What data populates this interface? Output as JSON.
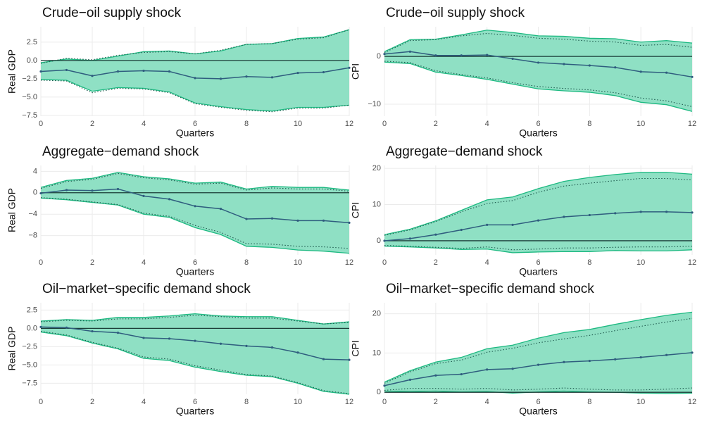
{
  "chart_data": [
    {
      "type": "band-line",
      "title": "Crude−oil supply shock",
      "xlabel": "Quarters",
      "ylabel": "Real GDP",
      "x": [
        0,
        1,
        2,
        3,
        4,
        5,
        6,
        7,
        8,
        9,
        10,
        11,
        12
      ],
      "xlim": [
        0,
        12
      ],
      "xticks": [
        0,
        2,
        4,
        6,
        8,
        10,
        12
      ],
      "ylim": [
        -7.6,
        4.6
      ],
      "yticks": [
        {
          "value": -7.5,
          "label": "−7.5"
        },
        {
          "value": -5,
          "label": "−5.0"
        },
        {
          "value": -2.5,
          "label": "−2.5"
        },
        {
          "value": 0,
          "label": "0.0"
        },
        {
          "value": 2.5,
          "label": "2.5"
        }
      ],
      "grid": true,
      "hline": 0,
      "band": {
        "color": "#8fe0c4",
        "edge_color": "#1db981",
        "upper": [
          -0.3,
          0.2,
          0.0,
          0.6,
          1.2,
          1.3,
          0.9,
          1.3,
          2.2,
          2.3,
          3.0,
          3.2,
          4.2
        ],
        "lower": [
          -2.6,
          -2.7,
          -4.2,
          -3.7,
          -3.8,
          -4.3,
          -5.8,
          -6.3,
          -6.7,
          -6.9,
          -6.4,
          -6.4,
          -6.1
        ]
      },
      "interval": {
        "color": "#1e5a4e",
        "upper": [
          -0.4,
          0.3,
          0.1,
          0.7,
          1.1,
          1.2,
          0.9,
          1.4,
          2.2,
          2.3,
          2.9,
          3.1,
          4.2
        ],
        "lower": [
          -2.7,
          -2.8,
          -4.4,
          -3.8,
          -3.9,
          -4.4,
          -5.9,
          -6.4,
          -6.8,
          -7.0,
          -6.5,
          -6.5,
          -6.1
        ]
      },
      "series": [
        {
          "color": "#2f5d7e",
          "values": [
            -1.5,
            -1.3,
            -2.1,
            -1.5,
            -1.4,
            -1.5,
            -2.4,
            -2.5,
            -2.2,
            -2.3,
            -1.7,
            -1.6,
            -1.0
          ]
        }
      ]
    },
    {
      "type": "band-line",
      "title": "Crude−oil supply shock",
      "xlabel": "Quarters",
      "ylabel": "CPI",
      "x": [
        0,
        1,
        2,
        3,
        4,
        5,
        6,
        7,
        8,
        9,
        10,
        11,
        12
      ],
      "xlim": [
        0,
        12
      ],
      "xticks": [
        0,
        2,
        4,
        6,
        8,
        10,
        12
      ],
      "ylim": [
        -12.5,
        6.2
      ],
      "yticks": [
        {
          "value": -10,
          "label": "−10"
        },
        0
      ],
      "grid": true,
      "hline": 0,
      "band": {
        "color": "#8fe0c4",
        "edge_color": "#1db981",
        "upper": [
          1.0,
          3.5,
          3.6,
          4.5,
          5.5,
          5.0,
          4.3,
          4.2,
          3.8,
          3.7,
          3.0,
          3.3,
          2.8
        ],
        "lower": [
          -1.2,
          -1.5,
          -3.3,
          -4.0,
          -4.8,
          -5.8,
          -6.8,
          -7.2,
          -7.5,
          -8.2,
          -9.6,
          -10.1,
          -11.5
        ]
      },
      "interval": {
        "color": "#1e5a4e",
        "upper": [
          0.8,
          3.3,
          3.5,
          4.3,
          4.8,
          4.4,
          3.8,
          3.6,
          3.2,
          3.0,
          2.3,
          2.5,
          1.9
        ],
        "lower": [
          -1.0,
          -1.3,
          -3.0,
          -3.8,
          -4.5,
          -5.5,
          -6.3,
          -6.7,
          -7.0,
          -7.6,
          -8.7,
          -9.3,
          -10.5
        ]
      },
      "series": [
        {
          "color": "#2f5d7e",
          "values": [
            0.5,
            1.0,
            0.2,
            0.2,
            0.3,
            -0.5,
            -1.3,
            -1.6,
            -1.9,
            -2.3,
            -3.2,
            -3.4,
            -4.3
          ]
        }
      ]
    },
    {
      "type": "band-line",
      "title": "Aggregate−demand shock",
      "xlabel": "Quarters",
      "ylabel": "Real GDP",
      "x": [
        0,
        1,
        2,
        3,
        4,
        5,
        6,
        7,
        8,
        9,
        10,
        11,
        12
      ],
      "xlim": [
        0,
        12
      ],
      "xticks": [
        0,
        2,
        4,
        6,
        8,
        10,
        12
      ],
      "ylim": [
        -11.6,
        5.1
      ],
      "yticks": [
        {
          "value": -8,
          "label": "−8"
        },
        {
          "value": -4,
          "label": "−4"
        },
        0,
        4
      ],
      "grid": true,
      "hline": 0,
      "band": {
        "color": "#8fe0c4",
        "edge_color": "#1db981",
        "upper": [
          1.0,
          2.3,
          2.7,
          3.8,
          3.0,
          2.6,
          1.8,
          2.0,
          0.7,
          1.2,
          1.0,
          1.0,
          0.5
        ],
        "lower": [
          -1.0,
          -1.3,
          -1.8,
          -2.3,
          -4.0,
          -4.6,
          -6.5,
          -7.8,
          -10.0,
          -10.2,
          -10.7,
          -10.9,
          -11.3
        ]
      },
      "interval": {
        "color": "#1e5a4e",
        "upper": [
          0.8,
          2.1,
          2.5,
          3.6,
          2.8,
          2.4,
          1.6,
          1.8,
          0.5,
          0.9,
          0.7,
          0.7,
          0.3
        ],
        "lower": [
          -0.9,
          -1.2,
          -1.7,
          -2.2,
          -3.8,
          -4.4,
          -6.1,
          -7.4,
          -9.5,
          -9.6,
          -10.0,
          -10.1,
          -10.4
        ]
      },
      "series": [
        {
          "color": "#2f5d7e",
          "values": [
            -0.1,
            0.5,
            0.4,
            0.7,
            -0.6,
            -1.2,
            -2.5,
            -3.0,
            -4.9,
            -4.8,
            -5.2,
            -5.2,
            -5.6
          ]
        }
      ]
    },
    {
      "type": "band-line",
      "title": "Aggregate−demand shock",
      "xlabel": "Quarters",
      "ylabel": "CPI",
      "x": [
        0,
        1,
        2,
        3,
        4,
        5,
        6,
        7,
        8,
        9,
        10,
        11,
        12
      ],
      "xlim": [
        0,
        12
      ],
      "xticks": [
        0,
        2,
        4,
        6,
        8,
        10,
        12
      ],
      "ylim": [
        -3.9,
        20.8
      ],
      "yticks": [
        0,
        10,
        20
      ],
      "grid": true,
      "hline": 0,
      "band": {
        "color": "#8fe0c4",
        "edge_color": "#1db981",
        "upper": [
          1.7,
          3.2,
          5.5,
          8.4,
          11.3,
          12.1,
          14.4,
          16.4,
          17.5,
          18.3,
          18.9,
          18.9,
          18.4
        ],
        "lower": [
          -1.5,
          -1.7,
          -2.0,
          -2.4,
          -2.3,
          -3.3,
          -3.1,
          -3.0,
          -3.0,
          -2.7,
          -2.8,
          -2.8,
          -2.5
        ]
      },
      "interval": {
        "color": "#1e5a4e",
        "upper": [
          1.5,
          3.0,
          5.3,
          8.0,
          10.3,
          11.1,
          13.4,
          15.1,
          15.9,
          16.6,
          17.2,
          17.2,
          16.8
        ],
        "lower": [
          -1.3,
          -1.5,
          -1.8,
          -2.1,
          -1.7,
          -2.5,
          -2.3,
          -2.0,
          -2.0,
          -1.8,
          -1.7,
          -1.7,
          -1.5
        ]
      },
      "series": [
        {
          "color": "#2f5d7e",
          "values": [
            0.0,
            0.6,
            1.7,
            3.0,
            4.4,
            4.4,
            5.6,
            6.6,
            7.1,
            7.6,
            8.0,
            8.0,
            7.8
          ]
        }
      ]
    },
    {
      "type": "band-line",
      "title": "Oil−market−specific demand shock",
      "xlabel": "Quarters",
      "ylabel": "Real GDP",
      "x": [
        0,
        1,
        2,
        3,
        4,
        5,
        6,
        7,
        8,
        9,
        10,
        11,
        12
      ],
      "xlim": [
        0,
        12
      ],
      "xticks": [
        0,
        2,
        4,
        6,
        8,
        10,
        12
      ],
      "ylim": [
        -9.0,
        3.5
      ],
      "yticks": [
        {
          "value": -7.5,
          "label": "−7.5"
        },
        {
          "value": -5,
          "label": "−5.0"
        },
        {
          "value": -2.5,
          "label": "−2.5"
        },
        {
          "value": 0,
          "label": "0.0"
        },
        {
          "value": 2.5,
          "label": "2.5"
        }
      ],
      "grid": true,
      "hline": 0,
      "band": {
        "color": "#8fe0c4",
        "edge_color": "#1db981",
        "upper": [
          1.0,
          1.2,
          1.1,
          1.5,
          1.5,
          1.7,
          2.0,
          1.7,
          1.6,
          1.6,
          1.1,
          0.6,
          0.9
        ],
        "lower": [
          -0.5,
          -1.0,
          -2.0,
          -2.8,
          -4.1,
          -4.4,
          -5.3,
          -5.9,
          -6.4,
          -6.6,
          -7.5,
          -8.6,
          -9.0
        ]
      },
      "interval": {
        "color": "#1e5a4e",
        "upper": [
          0.9,
          1.1,
          1.0,
          1.3,
          1.3,
          1.5,
          1.8,
          1.6,
          1.4,
          1.4,
          1.0,
          0.6,
          0.8
        ],
        "lower": [
          -0.4,
          -0.9,
          -1.9,
          -2.7,
          -3.9,
          -4.2,
          -5.1,
          -5.7,
          -6.3,
          -6.5,
          -7.4,
          -8.5,
          -8.9
        ]
      },
      "series": [
        {
          "color": "#2f5d7e",
          "values": [
            0.2,
            0.1,
            -0.4,
            -0.6,
            -1.3,
            -1.4,
            -1.7,
            -2.1,
            -2.4,
            -2.6,
            -3.3,
            -4.2,
            -4.3
          ]
        }
      ]
    },
    {
      "type": "band-line",
      "title": "Oil−market−specific demand shock",
      "xlabel": "Quarters",
      "ylabel": "CPI",
      "x": [
        0,
        1,
        2,
        3,
        4,
        5,
        6,
        7,
        8,
        9,
        10,
        11,
        12
      ],
      "xlim": [
        0,
        12
      ],
      "xticks": [
        0,
        2,
        4,
        6,
        8,
        10,
        12
      ],
      "ylim": [
        -0.5,
        22.8
      ],
      "yticks": [
        0,
        10,
        20
      ],
      "grid": true,
      "hline": 0,
      "band": {
        "color": "#8fe0c4",
        "edge_color": "#1db981",
        "upper": [
          2.6,
          5.5,
          7.7,
          8.9,
          11.1,
          12.0,
          13.8,
          15.2,
          16.0,
          17.3,
          18.5,
          19.6,
          20.4
        ],
        "lower": [
          0.3,
          0.2,
          0.3,
          0.1,
          0.2,
          -0.2,
          0.1,
          0.3,
          0.1,
          0.0,
          -0.2,
          -0.3,
          -0.2
        ]
      },
      "interval": {
        "color": "#1e5a4e",
        "upper": [
          2.3,
          5.2,
          7.3,
          8.2,
          10.2,
          11.2,
          12.6,
          13.6,
          14.5,
          15.7,
          16.8,
          17.9,
          18.8
        ],
        "lower": [
          0.5,
          1.0,
          1.0,
          0.8,
          1.0,
          0.6,
          0.8,
          1.1,
          0.8,
          0.6,
          0.6,
          0.8,
          1.1
        ]
      },
      "series": [
        {
          "color": "#2f5d7e",
          "values": [
            1.7,
            3.2,
            4.3,
            4.6,
            5.8,
            6.0,
            7.0,
            7.7,
            8.0,
            8.4,
            8.9,
            9.5,
            10.1
          ]
        }
      ]
    }
  ]
}
